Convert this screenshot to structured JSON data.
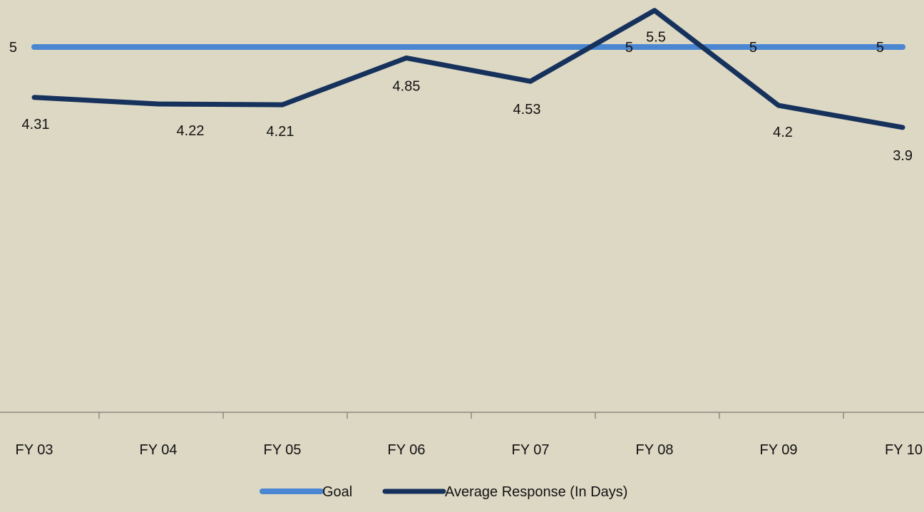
{
  "chart_data": {
    "type": "line",
    "categories": [
      "FY 03",
      "FY 04",
      "FY 05",
      "FY 06",
      "FY 07",
      "FY 08",
      "FY 09",
      "FY 10"
    ],
    "series": [
      {
        "name": "Goal",
        "values": [
          5,
          5,
          5,
          5,
          5,
          5,
          5,
          5
        ],
        "color": "#4a86d1",
        "data_labels": [
          "5",
          "",
          "",
          "",
          "",
          "5",
          "5",
          "5"
        ]
      },
      {
        "name": "Average Response (In Days)",
        "values": [
          4.31,
          4.22,
          4.21,
          4.85,
          4.53,
          5.5,
          4.2,
          3.9
        ],
        "color": "#16325c",
        "data_labels": [
          "4.31",
          "4.22",
          "4.21",
          "4.85",
          "4.53",
          "5.5",
          "4.2",
          "3.9"
        ]
      }
    ],
    "title": "",
    "xlabel": "",
    "ylabel": "",
    "ylim": [
      0,
      5.6
    ],
    "grid": false,
    "legend": "bottom"
  }
}
